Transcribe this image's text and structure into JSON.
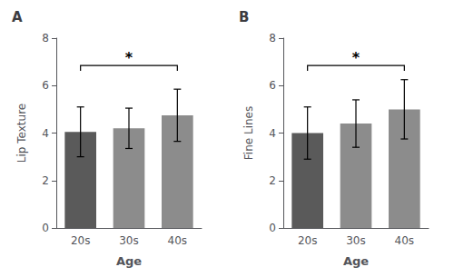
{
  "chart_data": [
    {
      "type": "bar",
      "title": "A",
      "categories": [
        "20s",
        "30s",
        "40s"
      ],
      "values": [
        4.05,
        4.2,
        4.75
      ],
      "errors": [
        1.05,
        0.85,
        1.1
      ],
      "colors": [
        "#5a5a5a",
        "#8c8c8c",
        "#8c8c8c"
      ],
      "ylabel": "Lip Texture",
      "xlabel": "Age",
      "ylim": [
        0,
        8
      ],
      "yticks": [
        0,
        2,
        4,
        6,
        8
      ],
      "grid": false,
      "annotations": [
        {
          "text": "*",
          "x": [
            "20s",
            "40s"
          ],
          "y": 6.85
        }
      ]
    },
    {
      "type": "bar",
      "title": "B",
      "categories": [
        "20s",
        "30s",
        "40s"
      ],
      "values": [
        4.0,
        4.4,
        5.0
      ],
      "errors": [
        1.1,
        1.0,
        1.25
      ],
      "colors": [
        "#5a5a5a",
        "#8c8c8c",
        "#8c8c8c"
      ],
      "ylabel": "Fine Lines",
      "xlabel": "Age",
      "ylim": [
        0,
        8
      ],
      "yticks": [
        0,
        2,
        4,
        6,
        8
      ],
      "grid": false,
      "annotations": [
        {
          "text": "*",
          "x": [
            "20s",
            "40s"
          ],
          "y": 6.85
        }
      ]
    }
  ]
}
